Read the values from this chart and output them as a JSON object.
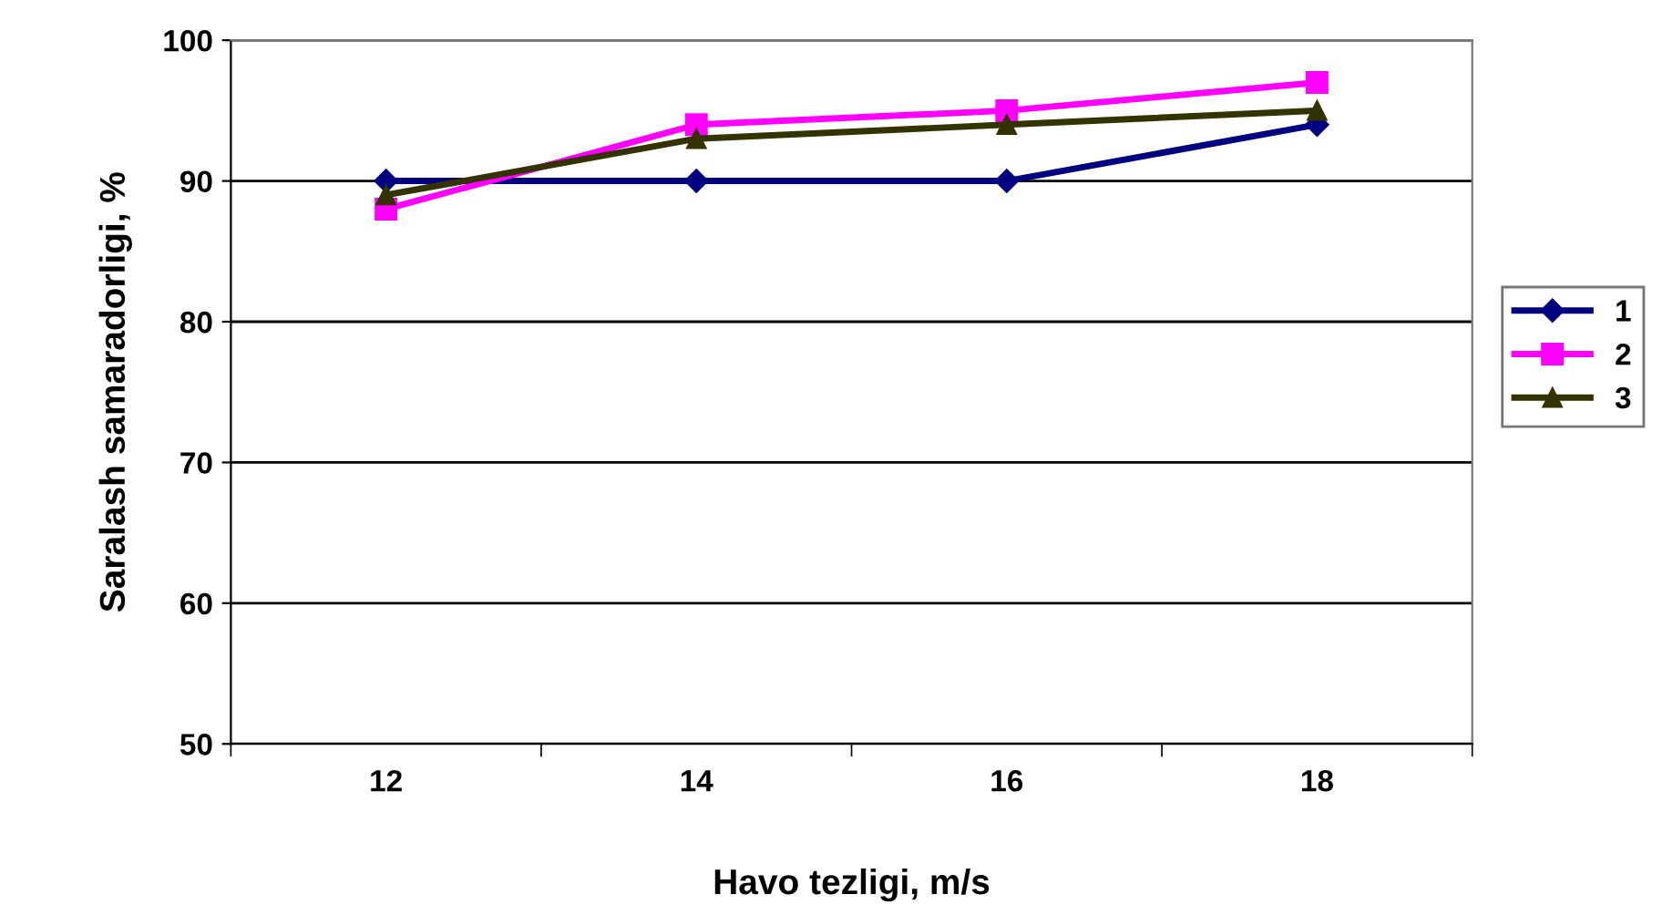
{
  "chart_data": {
    "type": "line",
    "xlabel": "Havo tezligi, m/s",
    "ylabel": "Saralash samaradorligi, %",
    "categories": [
      "12",
      "14",
      "16",
      "18"
    ],
    "series": [
      {
        "name": "1",
        "color": "#000080",
        "marker": "diamond",
        "values": [
          90,
          90,
          90,
          94
        ]
      },
      {
        "name": "2",
        "color": "#ff00ff",
        "marker": "square",
        "values": [
          88,
          94,
          95,
          97
        ]
      },
      {
        "name": "3",
        "color": "#333300",
        "marker": "triangle",
        "values": [
          89,
          93,
          94,
          95
        ]
      }
    ],
    "ylim": [
      50,
      100
    ],
    "yticks": [
      50,
      60,
      70,
      80,
      90,
      100
    ],
    "grid": "y",
    "legend": "right",
    "line_style": "solid"
  }
}
